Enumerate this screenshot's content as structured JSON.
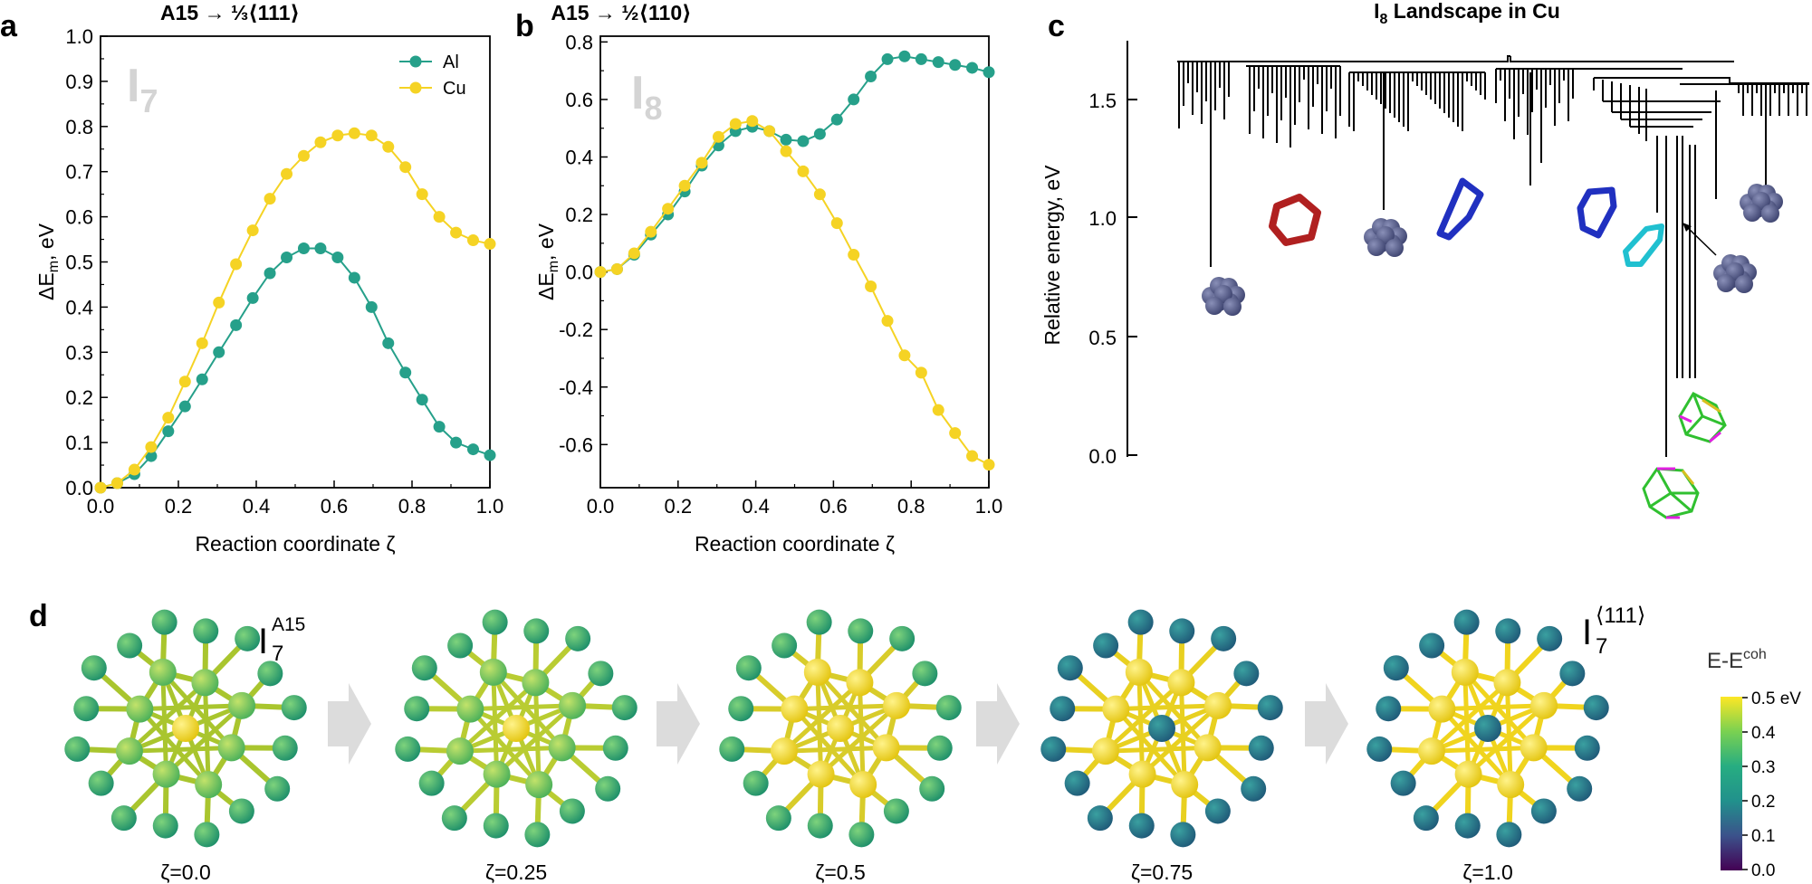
{
  "panels": {
    "a": {
      "label": "a"
    },
    "b": {
      "label": "b"
    },
    "c": {
      "label": "c"
    },
    "d": {
      "label": "d"
    }
  },
  "panel_a_watermark": {
    "main": "I",
    "sub": "7"
  },
  "panel_b_watermark": {
    "main": "I",
    "sub": "8"
  },
  "panel_c": {
    "title_main": "I",
    "title_sub": "8",
    "title_rest": " Landscape in Cu",
    "ylabel": "Relative energy, eV",
    "yticks": [
      "0.0",
      "0.5",
      "1.0",
      "1.5"
    ]
  },
  "panel_d": {
    "left_label": {
      "main": "I",
      "sub": "7",
      "sup": "A15"
    },
    "right_label": {
      "main": "I",
      "sub": "7",
      "sup": "⟨111⟩"
    },
    "snapshots": [
      "ζ=0.0",
      "ζ=0.25",
      "ζ=0.5",
      "ζ=0.75",
      "ζ=1.0"
    ],
    "colorbar": {
      "title_base": "E-E",
      "title_sup": "coh",
      "ticks": [
        "0.5 eV",
        "0.4",
        "0.3",
        "0.2",
        "0.1",
        "0.0"
      ]
    }
  },
  "colors": {
    "al": "#26a08a",
    "cu": "#f5d324",
    "watermark": "#d4d4d4"
  },
  "chart_data": [
    {
      "id": "a",
      "type": "line",
      "title": "A15 → ⅓⟨111⟩",
      "xlabel": "Reaction coordinate ζ",
      "ylabel": "ΔE",
      "ylabel_sub": "m",
      "ylabel_unit": ", eV",
      "xlim": [
        0,
        1
      ],
      "ylim": [
        0,
        1
      ],
      "xticks": [
        0,
        0.2,
        0.4,
        0.6,
        0.8,
        1.0
      ],
      "xtick_labels": [
        "0.0",
        "0.2",
        "0.4",
        "0.6",
        "0.8",
        "1.0"
      ],
      "yticks": [
        0,
        0.1,
        0.2,
        0.3,
        0.4,
        0.5,
        0.6,
        0.7,
        0.8,
        0.9,
        1.0
      ],
      "ytick_labels": [
        "0.0",
        "0.1",
        "0.2",
        "0.3",
        "0.4",
        "0.5",
        "0.6",
        "0.7",
        "0.8",
        "0.9",
        "1.0"
      ],
      "legend": "top-right",
      "series": [
        {
          "name": "Al",
          "color": "#26a08a",
          "x": [
            0,
            0.043,
            0.087,
            0.13,
            0.174,
            0.217,
            0.261,
            0.304,
            0.348,
            0.391,
            0.435,
            0.478,
            0.522,
            0.565,
            0.609,
            0.652,
            0.696,
            0.739,
            0.783,
            0.826,
            0.87,
            0.913,
            0.957,
            1.0
          ],
          "y": [
            0.0,
            0.01,
            0.03,
            0.07,
            0.125,
            0.18,
            0.24,
            0.3,
            0.36,
            0.42,
            0.475,
            0.51,
            0.53,
            0.53,
            0.51,
            0.465,
            0.4,
            0.32,
            0.255,
            0.195,
            0.135,
            0.1,
            0.085,
            0.072
          ]
        },
        {
          "name": "Cu",
          "color": "#f5d324",
          "x": [
            0,
            0.043,
            0.087,
            0.13,
            0.174,
            0.217,
            0.261,
            0.304,
            0.348,
            0.391,
            0.435,
            0.478,
            0.522,
            0.565,
            0.609,
            0.652,
            0.696,
            0.739,
            0.783,
            0.826,
            0.87,
            0.913,
            0.957,
            1.0
          ],
          "y": [
            0.0,
            0.01,
            0.04,
            0.09,
            0.155,
            0.235,
            0.32,
            0.41,
            0.495,
            0.57,
            0.64,
            0.695,
            0.735,
            0.765,
            0.78,
            0.785,
            0.78,
            0.755,
            0.71,
            0.65,
            0.6,
            0.565,
            0.548,
            0.54
          ]
        }
      ]
    },
    {
      "id": "b",
      "type": "line",
      "title": "A15 → ½⟨110⟩",
      "xlabel": "Reaction coordinate ζ",
      "ylabel": "ΔE",
      "ylabel_sub": "m",
      "ylabel_unit": ", eV",
      "xlim": [
        0,
        1
      ],
      "ylim": [
        -0.75,
        0.82
      ],
      "xticks": [
        0,
        0.2,
        0.4,
        0.6,
        0.8,
        1.0
      ],
      "xtick_labels": [
        "0.0",
        "0.2",
        "0.4",
        "0.6",
        "0.8",
        "1.0"
      ],
      "yticks": [
        -0.6,
        -0.4,
        -0.2,
        0,
        0.2,
        0.4,
        0.6,
        0.8
      ],
      "ytick_labels": [
        "-0.6",
        "-0.4",
        "-0.2",
        "0.0",
        "0.2",
        "0.4",
        "0.6",
        "0.8"
      ],
      "series": [
        {
          "name": "Al",
          "color": "#26a08a",
          "x": [
            0,
            0.043,
            0.087,
            0.13,
            0.174,
            0.217,
            0.261,
            0.304,
            0.348,
            0.391,
            0.435,
            0.478,
            0.522,
            0.565,
            0.609,
            0.652,
            0.696,
            0.739,
            0.783,
            0.826,
            0.87,
            0.913,
            0.957,
            1.0
          ],
          "y": [
            0.0,
            0.01,
            0.06,
            0.13,
            0.2,
            0.28,
            0.37,
            0.44,
            0.49,
            0.505,
            0.49,
            0.46,
            0.455,
            0.48,
            0.53,
            0.6,
            0.68,
            0.74,
            0.75,
            0.74,
            0.73,
            0.72,
            0.71,
            0.695
          ]
        },
        {
          "name": "Cu",
          "color": "#f5d324",
          "x": [
            0,
            0.043,
            0.087,
            0.13,
            0.174,
            0.217,
            0.261,
            0.304,
            0.348,
            0.391,
            0.435,
            0.478,
            0.522,
            0.565,
            0.609,
            0.652,
            0.696,
            0.739,
            0.783,
            0.826,
            0.87,
            0.913,
            0.957,
            1.0
          ],
          "y": [
            0.0,
            0.01,
            0.065,
            0.14,
            0.22,
            0.3,
            0.38,
            0.47,
            0.515,
            0.525,
            0.49,
            0.42,
            0.35,
            0.27,
            0.17,
            0.06,
            -0.05,
            -0.17,
            -0.29,
            -0.35,
            -0.48,
            -0.56,
            -0.64,
            -0.67
          ]
        }
      ]
    }
  ]
}
